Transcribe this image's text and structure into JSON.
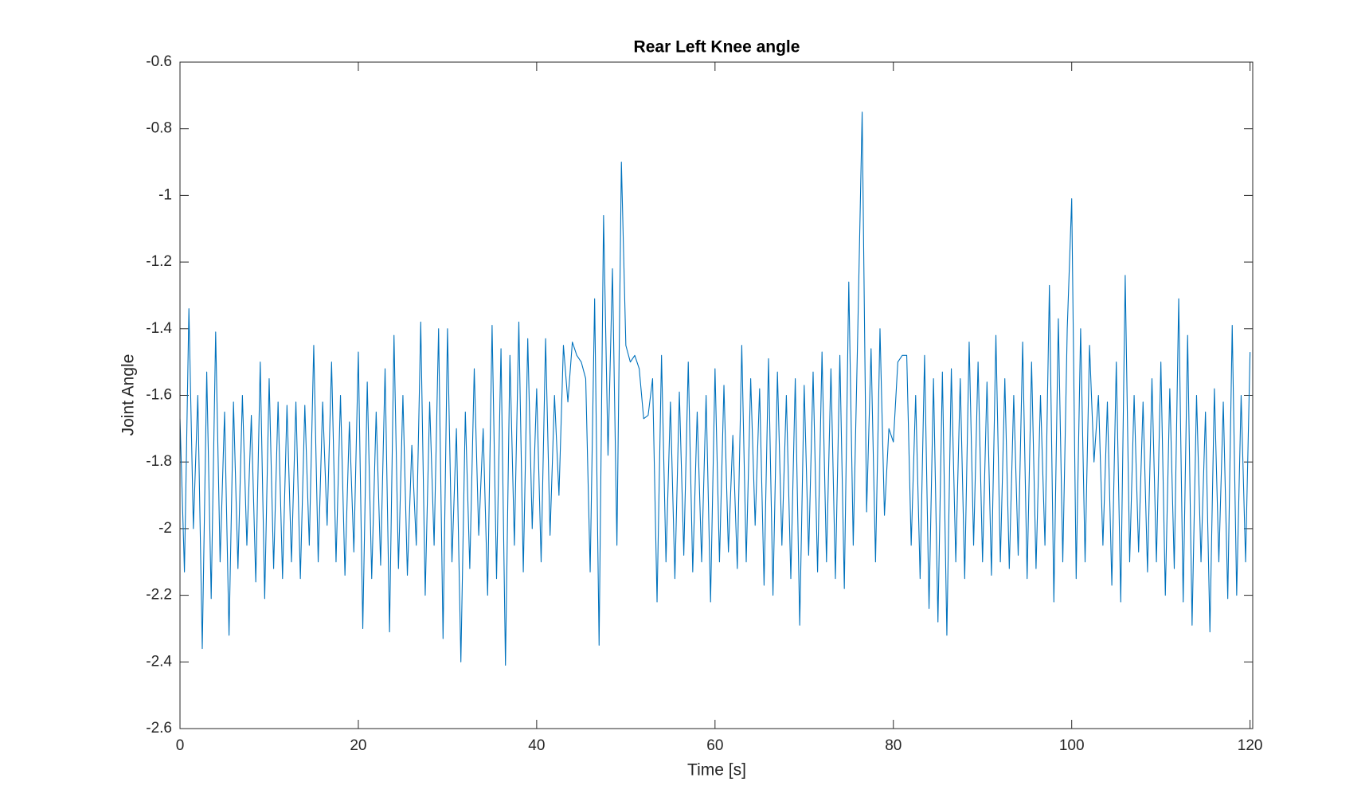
{
  "chart_data": {
    "type": "line",
    "title": "Rear Left Knee angle",
    "x_label": "Time [s]",
    "y_label": "Joint Angle",
    "xlim": [
      0,
      120.3
    ],
    "ylim": [
      -2.6,
      -0.6
    ],
    "xticks": [
      0,
      20,
      40,
      60,
      80,
      100,
      120
    ],
    "yticks": [
      -2.6,
      -2.4,
      -2.2,
      -2,
      -1.8,
      -1.6,
      -1.4,
      -1.2,
      -1,
      -0.8,
      -0.6
    ],
    "grid": false,
    "x": [
      0,
      0.5,
      1,
      1.5,
      2,
      2.5,
      3,
      3.5,
      4,
      4.5,
      5,
      5.5,
      6,
      6.5,
      7,
      7.5,
      8,
      8.5,
      9,
      9.5,
      10,
      10.5,
      11,
      11.5,
      12,
      12.5,
      13,
      13.5,
      14,
      14.5,
      15,
      15.5,
      16,
      16.5,
      17,
      17.5,
      18,
      18.5,
      19,
      19.5,
      20,
      20.5,
      21,
      21.5,
      22,
      22.5,
      23,
      23.5,
      24,
      24.5,
      25,
      25.5,
      26,
      26.5,
      27,
      27.5,
      28,
      28.5,
      29,
      29.5,
      30,
      30.5,
      31,
      31.5,
      32,
      32.5,
      33,
      33.5,
      34,
      34.5,
      35,
      35.5,
      36,
      36.5,
      37,
      37.5,
      38,
      38.5,
      39,
      39.5,
      40,
      40.5,
      41,
      41.5,
      42,
      42.5,
      43,
      43.5,
      44,
      44.5,
      45,
      45.5,
      46,
      46.5,
      47,
      47.5,
      48,
      48.5,
      49,
      49.5,
      50,
      50.5,
      51,
      51.5,
      52,
      52.5,
      53,
      53.5,
      54,
      54.5,
      55,
      55.5,
      56,
      56.5,
      57,
      57.5,
      58,
      58.5,
      59,
      59.5,
      60,
      60.5,
      61,
      61.5,
      62,
      62.5,
      63,
      63.5,
      64,
      64.5,
      65,
      65.5,
      66,
      66.5,
      67,
      67.5,
      68,
      68.5,
      69,
      69.5,
      70,
      70.5,
      71,
      71.5,
      72,
      72.5,
      73,
      73.5,
      74,
      74.5,
      75,
      75.5,
      76,
      76.5,
      77,
      77.5,
      78,
      78.5,
      79,
      79.5,
      80,
      80.5,
      81,
      81.5,
      82,
      82.5,
      83,
      83.5,
      84,
      84.5,
      85,
      85.5,
      86,
      86.5,
      87,
      87.5,
      88,
      88.5,
      89,
      89.5,
      90,
      90.5,
      91,
      91.5,
      92,
      92.5,
      93,
      93.5,
      94,
      94.5,
      95,
      95.5,
      96,
      96.5,
      97,
      97.5,
      98,
      98.5,
      99,
      99.5,
      100,
      100.5,
      101,
      101.5,
      102,
      102.5,
      103,
      103.5,
      104,
      104.5,
      105,
      105.5,
      106,
      106.5,
      107,
      107.5,
      108,
      108.5,
      109,
      109.5,
      110,
      110.5,
      111,
      111.5,
      112,
      112.5,
      113,
      113.5,
      114,
      114.5,
      115,
      115.5,
      116,
      116.5,
      117,
      117.5,
      118,
      118.5,
      119,
      119.5,
      120
    ],
    "series": [
      {
        "color": "#0072bd",
        "values": [
          -1.67,
          -2.13,
          -1.34,
          -2.0,
          -1.6,
          -2.36,
          -1.53,
          -2.21,
          -1.41,
          -2.1,
          -1.65,
          -2.32,
          -1.62,
          -2.12,
          -1.6,
          -2.05,
          -1.66,
          -2.16,
          -1.5,
          -2.21,
          -1.55,
          -2.12,
          -1.62,
          -2.15,
          -1.63,
          -2.1,
          -1.62,
          -2.15,
          -1.63,
          -2.05,
          -1.45,
          -2.1,
          -1.62,
          -1.99,
          -1.5,
          -2.1,
          -1.6,
          -2.14,
          -1.68,
          -2.07,
          -1.47,
          -2.3,
          -1.56,
          -2.15,
          -1.65,
          -2.11,
          -1.52,
          -2.31,
          -1.42,
          -2.12,
          -1.6,
          -2.14,
          -1.75,
          -2.05,
          -1.38,
          -2.2,
          -1.62,
          -2.05,
          -1.4,
          -2.33,
          -1.4,
          -2.1,
          -1.7,
          -2.4,
          -1.65,
          -2.12,
          -1.52,
          -2.02,
          -1.7,
          -2.2,
          -1.39,
          -2.15,
          -1.46,
          -2.41,
          -1.48,
          -2.05,
          -1.38,
          -2.13,
          -1.43,
          -2.0,
          -1.58,
          -2.1,
          -1.43,
          -2.02,
          -1.6,
          -1.9,
          -1.45,
          -1.62,
          -1.44,
          -1.48,
          -1.5,
          -1.55,
          -2.13,
          -1.31,
          -2.35,
          -1.06,
          -1.78,
          -1.22,
          -2.05,
          -0.9,
          -1.45,
          -1.5,
          -1.48,
          -1.52,
          -1.67,
          -1.66,
          -1.55,
          -2.22,
          -1.48,
          -2.1,
          -1.62,
          -2.15,
          -1.59,
          -2.08,
          -1.5,
          -2.13,
          -1.65,
          -2.1,
          -1.6,
          -2.22,
          -1.52,
          -2.1,
          -1.57,
          -2.07,
          -1.72,
          -2.12,
          -1.45,
          -2.1,
          -1.55,
          -1.99,
          -1.58,
          -2.17,
          -1.49,
          -2.2,
          -1.53,
          -2.05,
          -1.6,
          -2.15,
          -1.55,
          -2.29,
          -1.57,
          -2.08,
          -1.53,
          -2.13,
          -1.47,
          -2.1,
          -1.52,
          -2.15,
          -1.48,
          -2.18,
          -1.26,
          -2.05,
          -1.42,
          -0.75,
          -1.95,
          -1.46,
          -2.1,
          -1.4,
          -1.96,
          -1.7,
          -1.74,
          -1.5,
          -1.48,
          -1.48,
          -2.05,
          -1.6,
          -2.15,
          -1.48,
          -2.24,
          -1.55,
          -2.28,
          -1.53,
          -2.32,
          -1.52,
          -2.1,
          -1.55,
          -2.15,
          -1.44,
          -2.05,
          -1.5,
          -2.1,
          -1.56,
          -2.14,
          -1.42,
          -2.1,
          -1.55,
          -2.12,
          -1.6,
          -2.08,
          -1.44,
          -2.15,
          -1.5,
          -2.12,
          -1.6,
          -2.05,
          -1.27,
          -2.22,
          -1.37,
          -2.1,
          -1.4,
          -1.01,
          -2.15,
          -1.4,
          -2.1,
          -1.45,
          -1.8,
          -1.6,
          -2.05,
          -1.62,
          -2.17,
          -1.5,
          -2.22,
          -1.24,
          -2.1,
          -1.6,
          -2.07,
          -1.62,
          -2.13,
          -1.55,
          -2.1,
          -1.5,
          -2.2,
          -1.58,
          -2.12,
          -1.31,
          -2.22,
          -1.42,
          -2.29,
          -1.6,
          -2.1,
          -1.65,
          -2.31,
          -1.58,
          -2.1,
          -1.62,
          -2.21,
          -1.39,
          -2.2,
          -1.6,
          -2.1,
          -1.47
        ]
      }
    ]
  }
}
